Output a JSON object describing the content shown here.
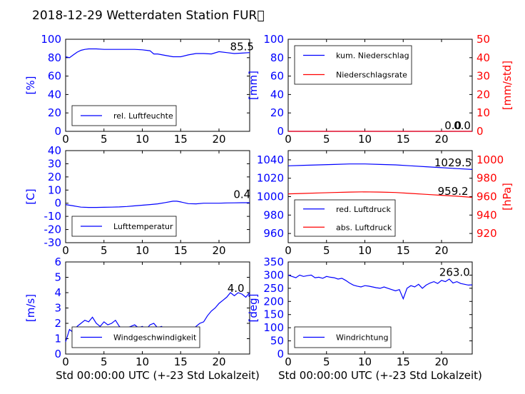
{
  "title": "2018-12-29 Wetterdaten Station FUR\u0000",
  "colors": {
    "primary": "#0000ff",
    "secondary": "#ff0000",
    "text": "#000000",
    "lightline": "#8080ff"
  },
  "chart_data": [
    {
      "id": "humidity",
      "type": "line",
      "title": "",
      "xlabel": "",
      "ylabel": "[%]",
      "xlim": [
        0,
        24
      ],
      "ylim": [
        0,
        100
      ],
      "xticks": [
        0,
        5,
        10,
        15,
        20
      ],
      "yticks": [
        0,
        20,
        40,
        60,
        80,
        100
      ],
      "legend_position": "lower-left",
      "series": [
        {
          "name": "rel. Luftfeuchte",
          "axis": "left",
          "x": [
            0,
            0.5,
            1,
            1.5,
            2,
            2.5,
            3,
            4,
            5,
            6,
            7,
            8,
            9,
            10,
            11,
            11.5,
            12,
            13,
            14,
            15,
            16,
            17,
            18,
            19,
            20,
            21,
            22,
            23,
            24
          ],
          "y": [
            81,
            80,
            83,
            86,
            88,
            89,
            89.5,
            89.5,
            89,
            89,
            89,
            89,
            89,
            88.5,
            87.5,
            84,
            84,
            82.5,
            81,
            81,
            83,
            84.5,
            84.5,
            84,
            86.5,
            85.5,
            84.5,
            85,
            85.5
          ]
        }
      ],
      "annotations": [
        {
          "text": "85.5",
          "x": 23,
          "y": 88
        }
      ]
    },
    {
      "id": "precip",
      "type": "line",
      "title": "",
      "xlabel": "",
      "ylabel": "[mm]",
      "ylabel_right": "[mm/std]",
      "xlim": [
        0,
        24
      ],
      "ylim": [
        0,
        100
      ],
      "ylim_right": [
        0,
        50
      ],
      "xticks": [
        0,
        5,
        10,
        15,
        20
      ],
      "yticks": [
        0,
        20,
        40,
        60,
        80,
        100
      ],
      "yticks_right": [
        0,
        10,
        20,
        30,
        40,
        50
      ],
      "legend_position": "upper-left",
      "series": [
        {
          "name": "kum. Niederschlag",
          "axis": "left",
          "x": [
            0,
            24
          ],
          "y": [
            0,
            0
          ]
        },
        {
          "name": "Niederschlagsrate",
          "axis": "right",
          "x": [
            0,
            24
          ],
          "y": [
            0,
            0
          ]
        }
      ],
      "annotations": [
        {
          "text": "0.0",
          "x": 21.5,
          "y": 2.5
        },
        {
          "text": "0.0",
          "x": 22.7,
          "y": 2.5
        }
      ]
    },
    {
      "id": "temperature",
      "type": "line",
      "title": "",
      "xlabel": "",
      "ylabel": "[C]",
      "xlim": [
        0,
        24
      ],
      "ylim": [
        -30,
        40
      ],
      "xticks": [
        0,
        5,
        10,
        15,
        20
      ],
      "yticks": [
        -30,
        -20,
        -10,
        0,
        10,
        20,
        30,
        40
      ],
      "legend_position": "lower-left",
      "series": [
        {
          "name": "Lufttemperatur",
          "axis": "left",
          "x": [
            0,
            0.5,
            1,
            1.5,
            2,
            3,
            4,
            5,
            6,
            7,
            8,
            9,
            10,
            11,
            12,
            13,
            14,
            14.5,
            15,
            16,
            17,
            18,
            19,
            20,
            21,
            22,
            23,
            24
          ],
          "y": [
            -1,
            -1.5,
            -2,
            -2.5,
            -3,
            -3.2,
            -3.2,
            -3.1,
            -3,
            -2.8,
            -2.5,
            -2,
            -1.5,
            -1,
            -0.5,
            0.5,
            1.5,
            1.5,
            1,
            -0.3,
            -0.5,
            0,
            0,
            0,
            0.2,
            0.3,
            0.4,
            0.4
          ]
        }
      ],
      "annotations": [
        {
          "text": "0.4",
          "x": 23,
          "y": 4
        }
      ]
    },
    {
      "id": "pressure",
      "type": "line",
      "title": "",
      "xlabel": "",
      "ylabel": "",
      "ylabel_right": "[hPa]",
      "xlim": [
        0,
        24
      ],
      "ylim": [
        950,
        1050
      ],
      "ylim_right": [
        910,
        1010
      ],
      "xticks": [
        0,
        5,
        10,
        15,
        20
      ],
      "yticks": [
        960,
        980,
        1000,
        1020,
        1040
      ],
      "yticks_right": [
        920,
        940,
        960,
        980,
        1000
      ],
      "legend_position": "lower-left",
      "series": [
        {
          "name": "red. Luftdruck",
          "axis": "left",
          "x": [
            0,
            2,
            4,
            6,
            8,
            10,
            12,
            14,
            16,
            18,
            20,
            22,
            24
          ],
          "y": [
            1033.5,
            1034,
            1034.5,
            1035,
            1035.5,
            1035.5,
            1035,
            1034.5,
            1033.5,
            1032.5,
            1031.5,
            1030.5,
            1029.5
          ]
        },
        {
          "name": "abs. Luftdruck",
          "axis": "right",
          "x": [
            0,
            2,
            4,
            6,
            8,
            10,
            12,
            14,
            16,
            18,
            20,
            22,
            24
          ],
          "y": [
            963,
            963.5,
            964,
            964.5,
            965,
            965.2,
            965,
            964.5,
            963.5,
            962.5,
            961.5,
            960.5,
            959.2
          ]
        }
      ],
      "annotations": [
        {
          "text": "1029.5",
          "x": 21.5,
          "y": 1033
        },
        {
          "text": "959.2",
          "x": 21.5,
          "y": 1002
        }
      ]
    },
    {
      "id": "windspeed",
      "type": "line",
      "title": "",
      "xlabel": "Std 00:00:00 UTC (+-23 Std Lokalzeit)",
      "ylabel": "[m/s]",
      "xlim": [
        0,
        24
      ],
      "ylim": [
        0,
        6
      ],
      "xticks": [
        0,
        5,
        10,
        15,
        20
      ],
      "yticks": [
        0,
        1,
        2,
        3,
        4,
        5,
        6
      ],
      "legend_position": "lower-left",
      "series": [
        {
          "name": "Windgeschwindigkeit",
          "axis": "left",
          "x": [
            0,
            0.5,
            1,
            1.5,
            2,
            2.5,
            3,
            3.5,
            4,
            4.5,
            5,
            5.5,
            6,
            6.5,
            7,
            7.5,
            8,
            8.5,
            9,
            9.5,
            10,
            10.5,
            11,
            11.5,
            12,
            12.5,
            13,
            13.5,
            14,
            14.5,
            15,
            15.5,
            16,
            16.5,
            17,
            17.5,
            18,
            18.5,
            19,
            19.5,
            20,
            20.5,
            21,
            21.5,
            22,
            22.5,
            23,
            23.5,
            24
          ],
          "y": [
            0.8,
            1.6,
            1.4,
            1.8,
            2.0,
            2.2,
            2.1,
            2.4,
            2.0,
            1.8,
            2.1,
            1.9,
            2.0,
            2.2,
            1.8,
            1.6,
            1.7,
            1.8,
            1.9,
            1.7,
            1.8,
            1.6,
            1.9,
            2.0,
            1.7,
            1.8,
            1.6,
            1.5,
            1.2,
            1.1,
            1.0,
            0.9,
            1.3,
            1.5,
            1.8,
            2.0,
            2.1,
            2.5,
            2.8,
            3.0,
            3.3,
            3.5,
            3.7,
            4.0,
            3.8,
            4.0,
            3.9,
            3.7,
            4.0
          ]
        }
      ],
      "annotations": [
        {
          "text": "4.0",
          "x": 22.2,
          "y": 4.05
        }
      ]
    },
    {
      "id": "winddir",
      "type": "line",
      "title": "",
      "xlabel": "Std 00:00:00 UTC (+-23 Std Lokalzeit)",
      "ylabel": "[deg]",
      "xlim": [
        0,
        24
      ],
      "ylim": [
        0,
        350
      ],
      "xticks": [
        0,
        5,
        10,
        15,
        20
      ],
      "yticks": [
        0,
        50,
        100,
        150,
        200,
        250,
        300,
        350
      ],
      "legend_position": "lower-left",
      "series": [
        {
          "name": "Windrichtung",
          "axis": "left",
          "x": [
            0,
            0.5,
            1,
            1.5,
            2,
            2.5,
            3,
            3.5,
            4,
            4.5,
            5,
            5.5,
            6,
            6.5,
            7,
            7.5,
            8,
            8.5,
            9,
            9.5,
            10,
            10.5,
            11,
            11.5,
            12,
            12.5,
            13,
            13.5,
            14,
            14.5,
            15,
            15.5,
            16,
            16.5,
            17,
            17.5,
            18,
            18.5,
            19,
            19.5,
            20,
            20.5,
            21,
            21.5,
            22,
            22.5,
            23,
            23.5,
            24
          ],
          "y": [
            300,
            295,
            290,
            300,
            295,
            298,
            300,
            290,
            292,
            288,
            295,
            292,
            290,
            285,
            288,
            280,
            270,
            262,
            258,
            255,
            260,
            258,
            255,
            252,
            250,
            255,
            250,
            245,
            240,
            245,
            210,
            250,
            260,
            255,
            265,
            250,
            262,
            270,
            275,
            268,
            280,
            275,
            285,
            270,
            275,
            268,
            265,
            262,
            263
          ]
        }
      ],
      "annotations": [
        {
          "text": "263.0",
          "x": 21.7,
          "y": 297
        }
      ]
    }
  ]
}
